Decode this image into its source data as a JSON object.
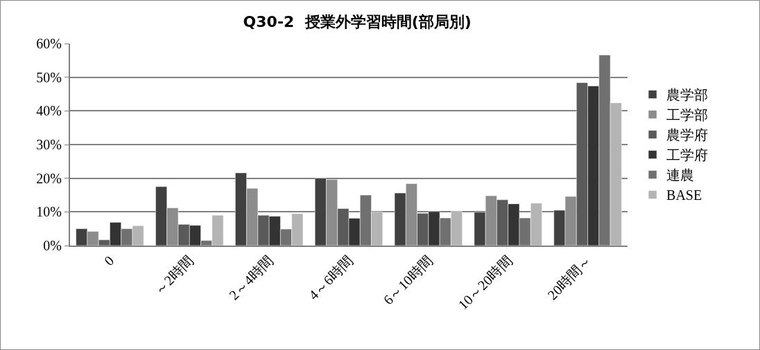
{
  "chart_data": {
    "type": "bar",
    "title": "Q30-2  授業外学習時間(部局別)",
    "categories": [
      "0",
      "～2時間",
      "2～4時間",
      "4～6時間",
      "6～10時間",
      "10～20時間",
      "20時間～"
    ],
    "series": [
      {
        "name": "農学部",
        "color": "#404040",
        "values": [
          5.0,
          17.5,
          21.6,
          20.0,
          15.6,
          9.9,
          10.5
        ]
      },
      {
        "name": "工学部",
        "color": "#8c8c8c",
        "values": [
          4.2,
          11.2,
          17.0,
          19.6,
          18.4,
          14.8,
          14.6
        ]
      },
      {
        "name": "農学府",
        "color": "#5a5a5a",
        "values": [
          1.7,
          6.3,
          9.0,
          11.0,
          9.6,
          13.6,
          48.4
        ]
      },
      {
        "name": "工学府",
        "color": "#333333",
        "values": [
          6.9,
          6.0,
          8.7,
          8.1,
          10.1,
          12.4,
          47.4
        ]
      },
      {
        "name": "連農",
        "color": "#707070",
        "values": [
          5.0,
          1.5,
          4.9,
          15.0,
          8.2,
          8.2,
          56.6
        ]
      },
      {
        "name": "BASE",
        "color": "#b4b4b4",
        "values": [
          5.9,
          9.0,
          9.5,
          10.0,
          10.1,
          12.6,
          42.4
        ]
      }
    ],
    "ylim": [
      0,
      60
    ],
    "yticks": [
      {
        "value": 0,
        "label": "0%"
      },
      {
        "value": 10,
        "label": "10%"
      },
      {
        "value": 20,
        "label": "20%"
      },
      {
        "value": 30,
        "label": "30%"
      },
      {
        "value": 40,
        "label": "40%"
      },
      {
        "value": 50,
        "label": "50%"
      },
      {
        "value": 60,
        "label": "60%"
      }
    ],
    "grid": "y",
    "legend": "right"
  }
}
